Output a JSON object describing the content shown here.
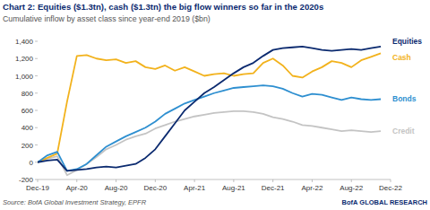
{
  "chart_data": {
    "type": "line",
    "title": "Chart 2: Equities ($1.3tn), cash ($1.3tn) the big flow winners so far in the 2020s",
    "subtitle": "Cumulative inflow by asset class since year-end 2019 ($bn)",
    "source": "Source: BofA Global Investment Strategy, EPFR",
    "annotations": [
      "BofA GLOBAL RESEARCH"
    ],
    "categories": [
      "Dec-19",
      null,
      null,
      null,
      "Apr-20",
      null,
      null,
      null,
      "Aug-20",
      null,
      null,
      null,
      "Dec-20",
      null,
      null,
      null,
      "Apr-21",
      null,
      null,
      null,
      "Aug-21",
      null,
      null,
      null,
      "Dec-21",
      null,
      null,
      null,
      "Apr-22",
      null,
      null,
      null,
      "Aug-22",
      null,
      null,
      null,
      "Dec-22"
    ],
    "series": [
      {
        "name": "Equities",
        "color": "#0b2a6f",
        "values": [
          0,
          20,
          30,
          -100,
          -90,
          -80,
          -60,
          -50,
          -60,
          -40,
          -20,
          50,
          150,
          300,
          450,
          600,
          700,
          800,
          870,
          950,
          1030,
          1100,
          1150,
          1230,
          1300,
          1320,
          1330,
          1340,
          1320,
          1300,
          1290,
          1300,
          1310,
          1300,
          1320,
          1340,
          null
        ]
      },
      {
        "name": "Bonds",
        "color": "#2e8fd0",
        "values": [
          0,
          80,
          120,
          -100,
          -80,
          -20,
          80,
          180,
          240,
          300,
          350,
          400,
          470,
          560,
          620,
          680,
          720,
          760,
          800,
          830,
          860,
          870,
          880,
          890,
          880,
          850,
          800,
          760,
          790,
          780,
          750,
          720,
          750,
          730,
          720,
          730,
          null
        ]
      },
      {
        "name": "Cash",
        "color": "#f2b21c",
        "values": [
          0,
          50,
          100,
          700,
          1230,
          1240,
          1200,
          1180,
          1190,
          1150,
          1170,
          1100,
          1080,
          1120,
          1060,
          1100,
          1050,
          1000,
          1020,
          1030,
          1000,
          1020,
          1030,
          1150,
          1200,
          1120,
          1000,
          980,
          1050,
          1100,
          1170,
          1150,
          1100,
          1180,
          1220,
          1260,
          null
        ]
      },
      {
        "name": "Credit",
        "color": "#c4c4c4",
        "values": [
          0,
          40,
          70,
          -150,
          -90,
          -20,
          60,
          150,
          200,
          260,
          300,
          330,
          390,
          430,
          470,
          500,
          530,
          550,
          570,
          580,
          590,
          590,
          580,
          560,
          520,
          500,
          470,
          430,
          420,
          400,
          380,
          360,
          370,
          360,
          350,
          360,
          null
        ]
      }
    ],
    "ylim": [
      -200,
      1400
    ],
    "yticks": [
      -200,
      0,
      200,
      400,
      600,
      800,
      {
        "value": 1000,
        "label": "1,000"
      },
      {
        "value": 1200,
        "label": "1,200"
      },
      {
        "value": 1400,
        "label": "1,400"
      }
    ],
    "grid": false,
    "legend": "right"
  }
}
